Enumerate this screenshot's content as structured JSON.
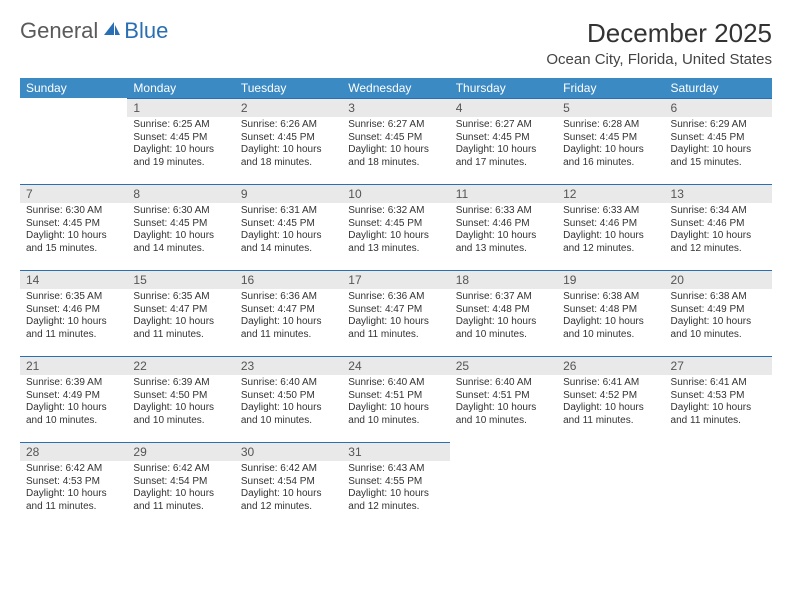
{
  "brand": {
    "general": "General",
    "blue": "Blue"
  },
  "title": {
    "month": "December 2025",
    "location": "Ocean City, Florida, United States"
  },
  "colors": {
    "header_bg": "#3b8ac4",
    "header_text": "#ffffff",
    "daynum_bg": "#e9e9e9",
    "daynum_border": "#2a6fb3",
    "body_text": "#333333",
    "logo_gray": "#5a5a5a",
    "logo_blue": "#2a6fb3"
  },
  "weekdays": [
    "Sunday",
    "Monday",
    "Tuesday",
    "Wednesday",
    "Thursday",
    "Friday",
    "Saturday"
  ],
  "labels": {
    "sunrise": "Sunrise:",
    "sunset": "Sunset:",
    "daylight": "Daylight:"
  },
  "first_weekday_index": 1,
  "days": [
    {
      "n": 1,
      "sunrise": "6:25 AM",
      "sunset": "4:45 PM",
      "daylight": "10 hours and 19 minutes."
    },
    {
      "n": 2,
      "sunrise": "6:26 AM",
      "sunset": "4:45 PM",
      "daylight": "10 hours and 18 minutes."
    },
    {
      "n": 3,
      "sunrise": "6:27 AM",
      "sunset": "4:45 PM",
      "daylight": "10 hours and 18 minutes."
    },
    {
      "n": 4,
      "sunrise": "6:27 AM",
      "sunset": "4:45 PM",
      "daylight": "10 hours and 17 minutes."
    },
    {
      "n": 5,
      "sunrise": "6:28 AM",
      "sunset": "4:45 PM",
      "daylight": "10 hours and 16 minutes."
    },
    {
      "n": 6,
      "sunrise": "6:29 AM",
      "sunset": "4:45 PM",
      "daylight": "10 hours and 15 minutes."
    },
    {
      "n": 7,
      "sunrise": "6:30 AM",
      "sunset": "4:45 PM",
      "daylight": "10 hours and 15 minutes."
    },
    {
      "n": 8,
      "sunrise": "6:30 AM",
      "sunset": "4:45 PM",
      "daylight": "10 hours and 14 minutes."
    },
    {
      "n": 9,
      "sunrise": "6:31 AM",
      "sunset": "4:45 PM",
      "daylight": "10 hours and 14 minutes."
    },
    {
      "n": 10,
      "sunrise": "6:32 AM",
      "sunset": "4:45 PM",
      "daylight": "10 hours and 13 minutes."
    },
    {
      "n": 11,
      "sunrise": "6:33 AM",
      "sunset": "4:46 PM",
      "daylight": "10 hours and 13 minutes."
    },
    {
      "n": 12,
      "sunrise": "6:33 AM",
      "sunset": "4:46 PM",
      "daylight": "10 hours and 12 minutes."
    },
    {
      "n": 13,
      "sunrise": "6:34 AM",
      "sunset": "4:46 PM",
      "daylight": "10 hours and 12 minutes."
    },
    {
      "n": 14,
      "sunrise": "6:35 AM",
      "sunset": "4:46 PM",
      "daylight": "10 hours and 11 minutes."
    },
    {
      "n": 15,
      "sunrise": "6:35 AM",
      "sunset": "4:47 PM",
      "daylight": "10 hours and 11 minutes."
    },
    {
      "n": 16,
      "sunrise": "6:36 AM",
      "sunset": "4:47 PM",
      "daylight": "10 hours and 11 minutes."
    },
    {
      "n": 17,
      "sunrise": "6:36 AM",
      "sunset": "4:47 PM",
      "daylight": "10 hours and 11 minutes."
    },
    {
      "n": 18,
      "sunrise": "6:37 AM",
      "sunset": "4:48 PM",
      "daylight": "10 hours and 10 minutes."
    },
    {
      "n": 19,
      "sunrise": "6:38 AM",
      "sunset": "4:48 PM",
      "daylight": "10 hours and 10 minutes."
    },
    {
      "n": 20,
      "sunrise": "6:38 AM",
      "sunset": "4:49 PM",
      "daylight": "10 hours and 10 minutes."
    },
    {
      "n": 21,
      "sunrise": "6:39 AM",
      "sunset": "4:49 PM",
      "daylight": "10 hours and 10 minutes."
    },
    {
      "n": 22,
      "sunrise": "6:39 AM",
      "sunset": "4:50 PM",
      "daylight": "10 hours and 10 minutes."
    },
    {
      "n": 23,
      "sunrise": "6:40 AM",
      "sunset": "4:50 PM",
      "daylight": "10 hours and 10 minutes."
    },
    {
      "n": 24,
      "sunrise": "6:40 AM",
      "sunset": "4:51 PM",
      "daylight": "10 hours and 10 minutes."
    },
    {
      "n": 25,
      "sunrise": "6:40 AM",
      "sunset": "4:51 PM",
      "daylight": "10 hours and 10 minutes."
    },
    {
      "n": 26,
      "sunrise": "6:41 AM",
      "sunset": "4:52 PM",
      "daylight": "10 hours and 11 minutes."
    },
    {
      "n": 27,
      "sunrise": "6:41 AM",
      "sunset": "4:53 PM",
      "daylight": "10 hours and 11 minutes."
    },
    {
      "n": 28,
      "sunrise": "6:42 AM",
      "sunset": "4:53 PM",
      "daylight": "10 hours and 11 minutes."
    },
    {
      "n": 29,
      "sunrise": "6:42 AM",
      "sunset": "4:54 PM",
      "daylight": "10 hours and 11 minutes."
    },
    {
      "n": 30,
      "sunrise": "6:42 AM",
      "sunset": "4:54 PM",
      "daylight": "10 hours and 12 minutes."
    },
    {
      "n": 31,
      "sunrise": "6:43 AM",
      "sunset": "4:55 PM",
      "daylight": "10 hours and 12 minutes."
    }
  ]
}
